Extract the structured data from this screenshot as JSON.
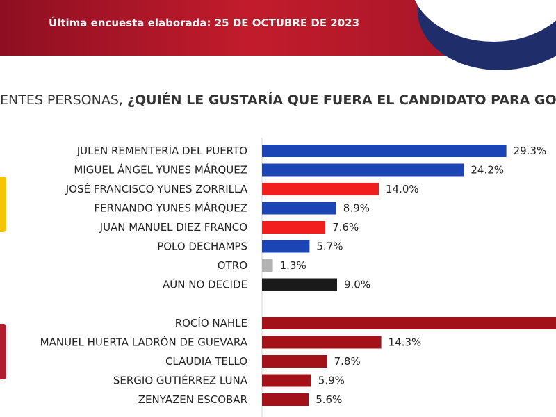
{
  "header": {
    "title": "Última encuesta elaborada: 25 DE OCTUBRE DE 2023"
  },
  "question": {
    "part1": "ENTES PERSONAS, ",
    "part2": "¿QUIÉN LE GUSTARÍA QUE FUERA EL CANDIDATO PARA GO"
  },
  "colors": {
    "blue": "#1b44b4",
    "red": "#f21d1d",
    "gray": "#b3b3b3",
    "black": "#1a1a1a",
    "maroon": "#a31218"
  },
  "chart_data": [
    {
      "type": "bar",
      "orientation": "horizontal",
      "categories": [
        "JULEN REMENTERÍA DEL PUERTO",
        "MIGUEL ÁNGEL YUNES MÁRQUEZ",
        "JOSÉ FRANCISCO YUNES ZORRILLA",
        "FERNANDO YUNES MÁRQUEZ",
        "JUAN MANUEL DIEZ FRANCO",
        "POLO DECHAMPS",
        "OTRO",
        "AÚN NO DECIDE"
      ],
      "values": [
        29.3,
        24.2,
        14.0,
        8.9,
        7.6,
        5.7,
        1.3,
        9.0
      ],
      "value_labels": [
        "29.3%",
        "24.2%",
        "14.0%",
        "8.9%",
        "7.6%",
        "5.7%",
        "1.3%",
        "9.0%"
      ],
      "bar_colors": [
        "blue",
        "blue",
        "red",
        "blue",
        "red",
        "blue",
        "gray",
        "black"
      ]
    },
    {
      "type": "bar",
      "orientation": "horizontal",
      "categories": [
        "ROCÍO NAHLE",
        "MANUEL HUERTA LADRÓN DE GUEVARA",
        "CLAUDIA TELLO",
        "SERGIO GUTIÉRREZ LUNA",
        "ZENYAZEN ESCOBAR"
      ],
      "values": [
        null,
        14.3,
        7.8,
        5.9,
        5.6
      ],
      "value_labels": [
        "",
        "14.3%",
        "7.8%",
        "5.9%",
        "5.6%"
      ],
      "bar_colors": [
        "maroon",
        "maroon",
        "maroon",
        "maroon",
        "maroon"
      ],
      "note": "first bar extends beyond visible area"
    }
  ]
}
